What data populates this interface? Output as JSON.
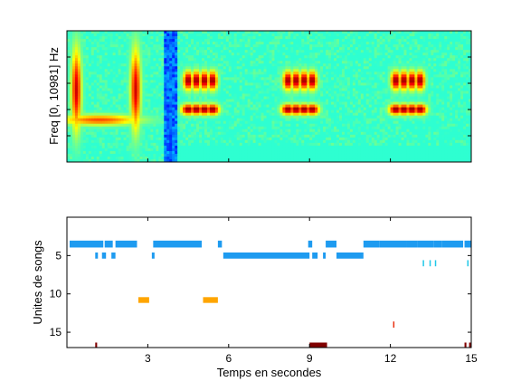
{
  "chart_data": [
    {
      "type": "heatmap",
      "title": "",
      "xlabel": "",
      "ylabel": "Freq [0, 10981] Hz",
      "xlim": [
        0,
        15
      ],
      "xticks": [],
      "yticks": [],
      "colormap": "jet",
      "description_values": {
        "background_level": "low-medium (green-cyan)",
        "broadband_low_region_s": [
          4.0,
          15.0
        ]
      },
      "sources": [
        {
          "x": 0.35,
          "y": 0.55,
          "w": 0.18,
          "h": 0.3,
          "lvl": 0.92
        },
        {
          "x": 2.55,
          "y": 0.55,
          "w": 0.18,
          "h": 0.3,
          "lvl": 0.92
        },
        {
          "x": 1.2,
          "y": 0.32,
          "w": 1.5,
          "h": 0.04,
          "lvl": 0.8
        },
        {
          "x": 4.5,
          "y": 0.62,
          "w": 0.18,
          "h": 0.07,
          "lvl": 1.0
        },
        {
          "x": 4.8,
          "y": 0.62,
          "w": 0.18,
          "h": 0.07,
          "lvl": 1.0
        },
        {
          "x": 5.1,
          "y": 0.62,
          "w": 0.18,
          "h": 0.07,
          "lvl": 1.0
        },
        {
          "x": 5.4,
          "y": 0.62,
          "w": 0.18,
          "h": 0.07,
          "lvl": 1.0
        },
        {
          "x": 4.5,
          "y": 0.4,
          "w": 0.25,
          "h": 0.04,
          "lvl": 1.0
        },
        {
          "x": 4.8,
          "y": 0.4,
          "w": 0.25,
          "h": 0.04,
          "lvl": 1.0
        },
        {
          "x": 5.1,
          "y": 0.4,
          "w": 0.25,
          "h": 0.04,
          "lvl": 1.0
        },
        {
          "x": 5.4,
          "y": 0.4,
          "w": 0.25,
          "h": 0.04,
          "lvl": 1.0
        },
        {
          "x": 8.2,
          "y": 0.62,
          "w": 0.18,
          "h": 0.07,
          "lvl": 1.0
        },
        {
          "x": 8.5,
          "y": 0.62,
          "w": 0.18,
          "h": 0.07,
          "lvl": 1.0
        },
        {
          "x": 8.8,
          "y": 0.62,
          "w": 0.18,
          "h": 0.07,
          "lvl": 1.0
        },
        {
          "x": 9.1,
          "y": 0.62,
          "w": 0.18,
          "h": 0.07,
          "lvl": 1.0
        },
        {
          "x": 8.2,
          "y": 0.4,
          "w": 0.25,
          "h": 0.04,
          "lvl": 1.0
        },
        {
          "x": 8.5,
          "y": 0.4,
          "w": 0.25,
          "h": 0.04,
          "lvl": 1.0
        },
        {
          "x": 8.8,
          "y": 0.4,
          "w": 0.25,
          "h": 0.04,
          "lvl": 1.0
        },
        {
          "x": 9.1,
          "y": 0.4,
          "w": 0.25,
          "h": 0.04,
          "lvl": 1.0
        },
        {
          "x": 12.2,
          "y": 0.62,
          "w": 0.18,
          "h": 0.07,
          "lvl": 1.0
        },
        {
          "x": 12.5,
          "y": 0.62,
          "w": 0.18,
          "h": 0.07,
          "lvl": 1.0
        },
        {
          "x": 12.8,
          "y": 0.62,
          "w": 0.18,
          "h": 0.07,
          "lvl": 1.0
        },
        {
          "x": 13.1,
          "y": 0.62,
          "w": 0.18,
          "h": 0.07,
          "lvl": 1.0
        },
        {
          "x": 12.2,
          "y": 0.4,
          "w": 0.25,
          "h": 0.04,
          "lvl": 1.0
        },
        {
          "x": 12.5,
          "y": 0.4,
          "w": 0.25,
          "h": 0.04,
          "lvl": 1.0
        },
        {
          "x": 12.8,
          "y": 0.4,
          "w": 0.25,
          "h": 0.04,
          "lvl": 1.0
        },
        {
          "x": 13.1,
          "y": 0.4,
          "w": 0.25,
          "h": 0.04,
          "lvl": 1.0
        }
      ],
      "cold_bands": [
        {
          "x0": 3.6,
          "x1": 4.1,
          "lvl": 0.15
        }
      ]
    },
    {
      "type": "table",
      "title": "",
      "xlabel": "Temps en secondes",
      "ylabel": "Unites de songs",
      "xlim": [
        0,
        15
      ],
      "ylim": [
        17,
        0
      ],
      "xticks": [
        3,
        6,
        9,
        12,
        15
      ],
      "yticks": [
        5,
        10,
        15
      ],
      "colors": {
        "blue": "#1e9bf0",
        "cyan": "#20c8e8",
        "orange": "#ffa500",
        "red": "#e83010",
        "darkred": "#800000"
      },
      "segments": [
        {
          "unit": 3.5,
          "x0": 0.1,
          "x1": 1.35,
          "h": 0.9,
          "color": "blue"
        },
        {
          "unit": 3.5,
          "x0": 1.4,
          "x1": 1.7,
          "h": 0.9,
          "color": "blue"
        },
        {
          "unit": 3.5,
          "x0": 1.8,
          "x1": 2.6,
          "h": 0.9,
          "color": "blue"
        },
        {
          "unit": 3.5,
          "x0": 3.2,
          "x1": 5.0,
          "h": 0.9,
          "color": "blue"
        },
        {
          "unit": 3.5,
          "x0": 5.6,
          "x1": 5.75,
          "h": 0.9,
          "color": "blue"
        },
        {
          "unit": 3.5,
          "x0": 8.95,
          "x1": 9.1,
          "h": 0.9,
          "color": "blue"
        },
        {
          "unit": 3.5,
          "x0": 9.6,
          "x1": 10.0,
          "h": 0.9,
          "color": "blue"
        },
        {
          "unit": 3.5,
          "x0": 11.0,
          "x1": 11.6,
          "h": 0.9,
          "color": "blue"
        },
        {
          "unit": 3.5,
          "x0": 11.6,
          "x1": 12.6,
          "h": 0.9,
          "color": "blue"
        },
        {
          "unit": 3.5,
          "x0": 12.6,
          "x1": 13.0,
          "h": 0.9,
          "color": "blue"
        },
        {
          "unit": 3.5,
          "x0": 13.0,
          "x1": 13.6,
          "h": 0.9,
          "color": "blue"
        },
        {
          "unit": 3.5,
          "x0": 13.6,
          "x1": 13.9,
          "h": 0.9,
          "color": "blue"
        },
        {
          "unit": 3.5,
          "x0": 13.9,
          "x1": 14.7,
          "h": 0.9,
          "color": "blue"
        },
        {
          "unit": 3.5,
          "x0": 14.75,
          "x1": 15.0,
          "h": 0.9,
          "color": "blue"
        },
        {
          "unit": 5.0,
          "x0": 1.05,
          "x1": 1.15,
          "h": 0.8,
          "color": "blue"
        },
        {
          "unit": 5.0,
          "x0": 1.3,
          "x1": 1.45,
          "h": 0.8,
          "color": "blue"
        },
        {
          "unit": 5.0,
          "x0": 1.65,
          "x1": 1.8,
          "h": 0.8,
          "color": "blue"
        },
        {
          "unit": 5.0,
          "x0": 3.15,
          "x1": 3.25,
          "h": 0.8,
          "color": "blue"
        },
        {
          "unit": 5.0,
          "x0": 5.8,
          "x1": 9.0,
          "h": 0.8,
          "color": "blue"
        },
        {
          "unit": 5.0,
          "x0": 9.1,
          "x1": 9.3,
          "h": 0.8,
          "color": "blue"
        },
        {
          "unit": 5.0,
          "x0": 9.5,
          "x1": 9.6,
          "h": 0.8,
          "color": "blue"
        },
        {
          "unit": 5.0,
          "x0": 10.0,
          "x1": 11.0,
          "h": 0.8,
          "color": "blue"
        },
        {
          "unit": 6.0,
          "x0": 13.2,
          "x1": 13.25,
          "h": 0.8,
          "color": "cyan"
        },
        {
          "unit": 6.0,
          "x0": 13.45,
          "x1": 13.5,
          "h": 0.8,
          "color": "cyan"
        },
        {
          "unit": 6.0,
          "x0": 13.65,
          "x1": 13.7,
          "h": 0.8,
          "color": "cyan"
        },
        {
          "unit": 6.0,
          "x0": 14.85,
          "x1": 14.9,
          "h": 0.8,
          "color": "cyan"
        },
        {
          "unit": 10.8,
          "x0": 2.65,
          "x1": 3.05,
          "h": 0.75,
          "color": "orange"
        },
        {
          "unit": 10.8,
          "x0": 5.05,
          "x1": 5.6,
          "h": 0.75,
          "color": "orange"
        },
        {
          "unit": 14.0,
          "x0": 12.1,
          "x1": 12.15,
          "h": 0.8,
          "color": "red"
        },
        {
          "unit": 16.7,
          "x0": 1.05,
          "x1": 1.12,
          "h": 0.7,
          "color": "darkred"
        },
        {
          "unit": 16.7,
          "x0": 9.0,
          "x1": 9.65,
          "h": 0.7,
          "color": "darkred"
        },
        {
          "unit": 16.7,
          "x0": 14.75,
          "x1": 14.82,
          "h": 0.7,
          "color": "darkred"
        },
        {
          "unit": 16.7,
          "x0": 14.92,
          "x1": 14.98,
          "h": 0.7,
          "color": "darkred"
        }
      ]
    }
  ]
}
